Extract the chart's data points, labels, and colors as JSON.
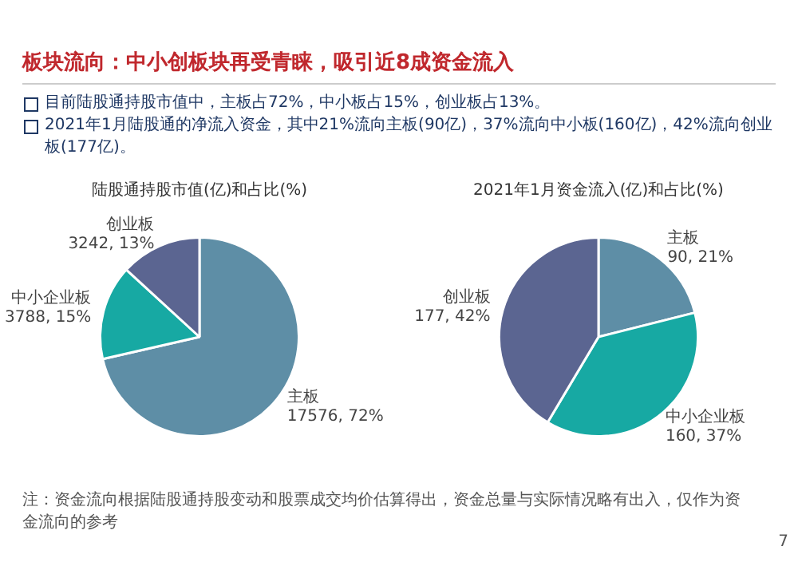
{
  "chart_data": [
    {
      "type": "pie",
      "title": "陆股通持股市值(亿)和占比(%)",
      "annotations": [
        "板块流向：中小创板块再受青睐，吸引近8成资金流入",
        "目前陆股通持股市值中，主板占72%，中小板占15%，创业板占13%。",
        "2021年1月陆股通的净流入资金，其中21%流向主板(90亿)，37%流向中小板(160亿)，42%流向创业板(177亿)。"
      ],
      "categories": [
        "主板",
        "中小企业板",
        "创业板"
      ],
      "values": [
        17576,
        3788,
        3242
      ],
      "value_labels": [
        "17576, 72%",
        "3788, 15%",
        "3242, 13%"
      ],
      "colors": [
        "#5e8ea6",
        "#17a9a3",
        "#5b6591"
      ],
      "legend": false
    },
    {
      "type": "pie",
      "title": "2021年1月资金流入(亿)和占比(%)",
      "annotations": [
        "注：资金流向根据陆股通持股变动和股票成交均价估算得出，资金总量与实际情况略有出入，仅作为资金流向的参考",
        "7"
      ],
      "categories": [
        "主板",
        "中小企业板",
        "创业板"
      ],
      "values": [
        90,
        160,
        177
      ],
      "value_labels": [
        "90, 21%",
        "160, 37%",
        "177, 42%"
      ],
      "colors": [
        "#5e8ea6",
        "#17a9a3",
        "#5b6591"
      ],
      "legend": false
    }
  ]
}
